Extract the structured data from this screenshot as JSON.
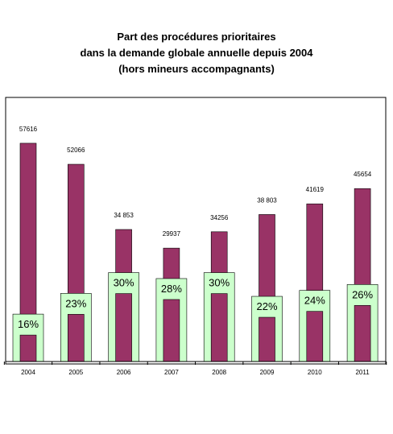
{
  "title_lines": [
    "Part des procédures prioritaires",
    "dans la demande globale annuelle depuis 2004",
    "(hors mineurs accompagnants)"
  ],
  "chart_data": {
    "type": "bar",
    "categories": [
      "2004",
      "2005",
      "2006",
      "2007",
      "2008",
      "2009",
      "2010",
      "2011"
    ],
    "series": [
      {
        "values": [
          57616,
          52066,
          34853,
          29937,
          34256,
          38803,
          41619,
          45654
        ],
        "value_labels": [
          "57616",
          "52066",
          "34 853",
          "29937",
          "34256",
          "38 803",
          "41619",
          "45654"
        ],
        "color": "#993366"
      },
      {
        "values": [
          16,
          23,
          30,
          28,
          30,
          22,
          24,
          26
        ],
        "value_labels": [
          "16%",
          "23%",
          "30%",
          "28%",
          "30%",
          "22%",
          "24%",
          "26%"
        ],
        "color": "#ccffcc"
      }
    ],
    "ylim": [
      0,
      65000
    ],
    "grid": false,
    "legend": "none"
  }
}
